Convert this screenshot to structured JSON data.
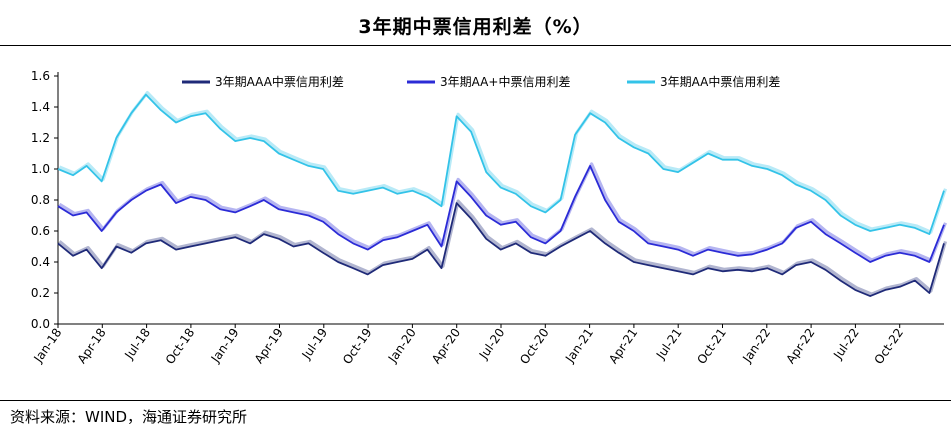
{
  "header": {
    "title": "3年期中票信用利差（%）"
  },
  "footer": {
    "source": "资料来源：WIND，海通证券研究所"
  },
  "chart_data": {
    "type": "line",
    "title": "3年期中票信用利差（%）",
    "xlabel": "",
    "ylabel": "",
    "ylim": [
      0,
      1.6
    ],
    "yticks": [
      "0.0",
      "0.2",
      "0.4",
      "0.6",
      "0.8",
      "1.0",
      "1.2",
      "1.4",
      "1.6"
    ],
    "xrange": [
      "2018-01-01",
      "2022-12-31"
    ],
    "xticks": [
      "Jan-18",
      "Apr-18",
      "Jul-18",
      "Oct-18",
      "Jan-19",
      "Apr-19",
      "Jul-19",
      "Oct-19",
      "Jan-20",
      "Apr-20",
      "Jul-20",
      "Oct-20",
      "Jan-21",
      "Apr-21",
      "Jul-21",
      "Oct-21",
      "Jan-22",
      "Apr-22",
      "Jul-22",
      "Oct-22"
    ],
    "grid": false,
    "legend_position": "top",
    "series": [
      {
        "name": "3年期AAA中票信用利差",
        "color": "#1f2a78",
        "points": [
          [
            "2018-01-01",
            0.52
          ],
          [
            "2018-02-01",
            0.44
          ],
          [
            "2018-03-01",
            0.48
          ],
          [
            "2018-04-01",
            0.36
          ],
          [
            "2018-05-01",
            0.5
          ],
          [
            "2018-06-01",
            0.46
          ],
          [
            "2018-07-01",
            0.52
          ],
          [
            "2018-08-01",
            0.54
          ],
          [
            "2018-09-01",
            0.48
          ],
          [
            "2018-10-01",
            0.5
          ],
          [
            "2018-11-01",
            0.52
          ],
          [
            "2018-12-01",
            0.54
          ],
          [
            "2019-01-01",
            0.56
          ],
          [
            "2019-02-01",
            0.52
          ],
          [
            "2019-03-01",
            0.58
          ],
          [
            "2019-04-01",
            0.55
          ],
          [
            "2019-05-01",
            0.5
          ],
          [
            "2019-06-01",
            0.52
          ],
          [
            "2019-07-01",
            0.46
          ],
          [
            "2019-08-01",
            0.4
          ],
          [
            "2019-09-01",
            0.36
          ],
          [
            "2019-10-01",
            0.32
          ],
          [
            "2019-11-01",
            0.38
          ],
          [
            "2019-12-01",
            0.4
          ],
          [
            "2020-01-01",
            0.42
          ],
          [
            "2020-02-01",
            0.48
          ],
          [
            "2020-03-01",
            0.36
          ],
          [
            "2020-04-01",
            0.78
          ],
          [
            "2020-05-01",
            0.68
          ],
          [
            "2020-06-01",
            0.55
          ],
          [
            "2020-07-01",
            0.48
          ],
          [
            "2020-08-01",
            0.52
          ],
          [
            "2020-09-01",
            0.46
          ],
          [
            "2020-10-01",
            0.44
          ],
          [
            "2020-11-01",
            0.5
          ],
          [
            "2020-12-01",
            0.55
          ],
          [
            "2021-01-01",
            0.6
          ],
          [
            "2021-02-01",
            0.52
          ],
          [
            "2021-03-01",
            0.46
          ],
          [
            "2021-04-01",
            0.4
          ],
          [
            "2021-05-01",
            0.38
          ],
          [
            "2021-06-01",
            0.36
          ],
          [
            "2021-07-01",
            0.34
          ],
          [
            "2021-08-01",
            0.32
          ],
          [
            "2021-09-01",
            0.36
          ],
          [
            "2021-10-01",
            0.34
          ],
          [
            "2021-11-01",
            0.35
          ],
          [
            "2021-12-01",
            0.34
          ],
          [
            "2022-01-01",
            0.36
          ],
          [
            "2022-02-01",
            0.32
          ],
          [
            "2022-03-01",
            0.38
          ],
          [
            "2022-04-01",
            0.4
          ],
          [
            "2022-05-01",
            0.35
          ],
          [
            "2022-06-01",
            0.28
          ],
          [
            "2022-07-01",
            0.22
          ],
          [
            "2022-08-01",
            0.18
          ],
          [
            "2022-09-01",
            0.22
          ],
          [
            "2022-10-01",
            0.24
          ],
          [
            "2022-11-01",
            0.28
          ],
          [
            "2022-12-01",
            0.2
          ],
          [
            "2022-12-31",
            0.52
          ]
        ]
      },
      {
        "name": "3年期AA+中票信用利差",
        "color": "#2b2bd6",
        "points": [
          [
            "2018-01-01",
            0.76
          ],
          [
            "2018-02-01",
            0.7
          ],
          [
            "2018-03-01",
            0.72
          ],
          [
            "2018-04-01",
            0.6
          ],
          [
            "2018-05-01",
            0.72
          ],
          [
            "2018-06-01",
            0.8
          ],
          [
            "2018-07-01",
            0.86
          ],
          [
            "2018-08-01",
            0.9
          ],
          [
            "2018-09-01",
            0.78
          ],
          [
            "2018-10-01",
            0.82
          ],
          [
            "2018-11-01",
            0.8
          ],
          [
            "2018-12-01",
            0.74
          ],
          [
            "2019-01-01",
            0.72
          ],
          [
            "2019-02-01",
            0.76
          ],
          [
            "2019-03-01",
            0.8
          ],
          [
            "2019-04-01",
            0.74
          ],
          [
            "2019-05-01",
            0.72
          ],
          [
            "2019-06-01",
            0.7
          ],
          [
            "2019-07-01",
            0.66
          ],
          [
            "2019-08-01",
            0.58
          ],
          [
            "2019-09-01",
            0.52
          ],
          [
            "2019-10-01",
            0.48
          ],
          [
            "2019-11-01",
            0.54
          ],
          [
            "2019-12-01",
            0.56
          ],
          [
            "2020-01-01",
            0.6
          ],
          [
            "2020-02-01",
            0.64
          ],
          [
            "2020-03-01",
            0.5
          ],
          [
            "2020-04-01",
            0.92
          ],
          [
            "2020-05-01",
            0.82
          ],
          [
            "2020-06-01",
            0.7
          ],
          [
            "2020-07-01",
            0.64
          ],
          [
            "2020-08-01",
            0.66
          ],
          [
            "2020-09-01",
            0.56
          ],
          [
            "2020-10-01",
            0.52
          ],
          [
            "2020-11-01",
            0.6
          ],
          [
            "2020-12-01",
            0.82
          ],
          [
            "2021-01-01",
            1.02
          ],
          [
            "2021-02-01",
            0.8
          ],
          [
            "2021-03-01",
            0.66
          ],
          [
            "2021-04-01",
            0.6
          ],
          [
            "2021-05-01",
            0.52
          ],
          [
            "2021-06-01",
            0.5
          ],
          [
            "2021-07-01",
            0.48
          ],
          [
            "2021-08-01",
            0.44
          ],
          [
            "2021-09-01",
            0.48
          ],
          [
            "2021-10-01",
            0.46
          ],
          [
            "2021-11-01",
            0.44
          ],
          [
            "2021-12-01",
            0.45
          ],
          [
            "2022-01-01",
            0.48
          ],
          [
            "2022-02-01",
            0.52
          ],
          [
            "2022-03-01",
            0.62
          ],
          [
            "2022-04-01",
            0.66
          ],
          [
            "2022-05-01",
            0.58
          ],
          [
            "2022-06-01",
            0.52
          ],
          [
            "2022-07-01",
            0.46
          ],
          [
            "2022-08-01",
            0.4
          ],
          [
            "2022-09-01",
            0.44
          ],
          [
            "2022-10-01",
            0.46
          ],
          [
            "2022-11-01",
            0.44
          ],
          [
            "2022-12-01",
            0.4
          ],
          [
            "2022-12-31",
            0.64
          ]
        ]
      },
      {
        "name": "3年期AA中票信用利差",
        "color": "#33c3e8",
        "points": [
          [
            "2018-01-01",
            1.0
          ],
          [
            "2018-02-01",
            0.96
          ],
          [
            "2018-03-01",
            1.02
          ],
          [
            "2018-04-01",
            0.92
          ],
          [
            "2018-05-01",
            1.2
          ],
          [
            "2018-06-01",
            1.36
          ],
          [
            "2018-07-01",
            1.48
          ],
          [
            "2018-08-01",
            1.38
          ],
          [
            "2018-09-01",
            1.3
          ],
          [
            "2018-10-01",
            1.34
          ],
          [
            "2018-11-01",
            1.36
          ],
          [
            "2018-12-01",
            1.26
          ],
          [
            "2019-01-01",
            1.18
          ],
          [
            "2019-02-01",
            1.2
          ],
          [
            "2019-03-01",
            1.18
          ],
          [
            "2019-04-01",
            1.1
          ],
          [
            "2019-05-01",
            1.06
          ],
          [
            "2019-06-01",
            1.02
          ],
          [
            "2019-07-01",
            1.0
          ],
          [
            "2019-08-01",
            0.86
          ],
          [
            "2019-09-01",
            0.84
          ],
          [
            "2019-10-01",
            0.86
          ],
          [
            "2019-11-01",
            0.88
          ],
          [
            "2019-12-01",
            0.84
          ],
          [
            "2020-01-01",
            0.86
          ],
          [
            "2020-02-01",
            0.82
          ],
          [
            "2020-03-01",
            0.76
          ],
          [
            "2020-04-01",
            1.34
          ],
          [
            "2020-05-01",
            1.24
          ],
          [
            "2020-06-01",
            0.98
          ],
          [
            "2020-07-01",
            0.88
          ],
          [
            "2020-08-01",
            0.84
          ],
          [
            "2020-09-01",
            0.76
          ],
          [
            "2020-10-01",
            0.72
          ],
          [
            "2020-11-01",
            0.8
          ],
          [
            "2020-12-01",
            1.22
          ],
          [
            "2021-01-01",
            1.36
          ],
          [
            "2021-02-01",
            1.3
          ],
          [
            "2021-03-01",
            1.2
          ],
          [
            "2021-04-01",
            1.14
          ],
          [
            "2021-05-01",
            1.1
          ],
          [
            "2021-06-01",
            1.0
          ],
          [
            "2021-07-01",
            0.98
          ],
          [
            "2021-08-01",
            1.04
          ],
          [
            "2021-09-01",
            1.1
          ],
          [
            "2021-10-01",
            1.06
          ],
          [
            "2021-11-01",
            1.06
          ],
          [
            "2021-12-01",
            1.02
          ],
          [
            "2022-01-01",
            1.0
          ],
          [
            "2022-02-01",
            0.96
          ],
          [
            "2022-03-01",
            0.9
          ],
          [
            "2022-04-01",
            0.86
          ],
          [
            "2022-05-01",
            0.8
          ],
          [
            "2022-06-01",
            0.7
          ],
          [
            "2022-07-01",
            0.64
          ],
          [
            "2022-08-01",
            0.6
          ],
          [
            "2022-09-01",
            0.62
          ],
          [
            "2022-10-01",
            0.64
          ],
          [
            "2022-11-01",
            0.62
          ],
          [
            "2022-12-01",
            0.58
          ],
          [
            "2022-12-31",
            0.86
          ]
        ]
      }
    ]
  }
}
